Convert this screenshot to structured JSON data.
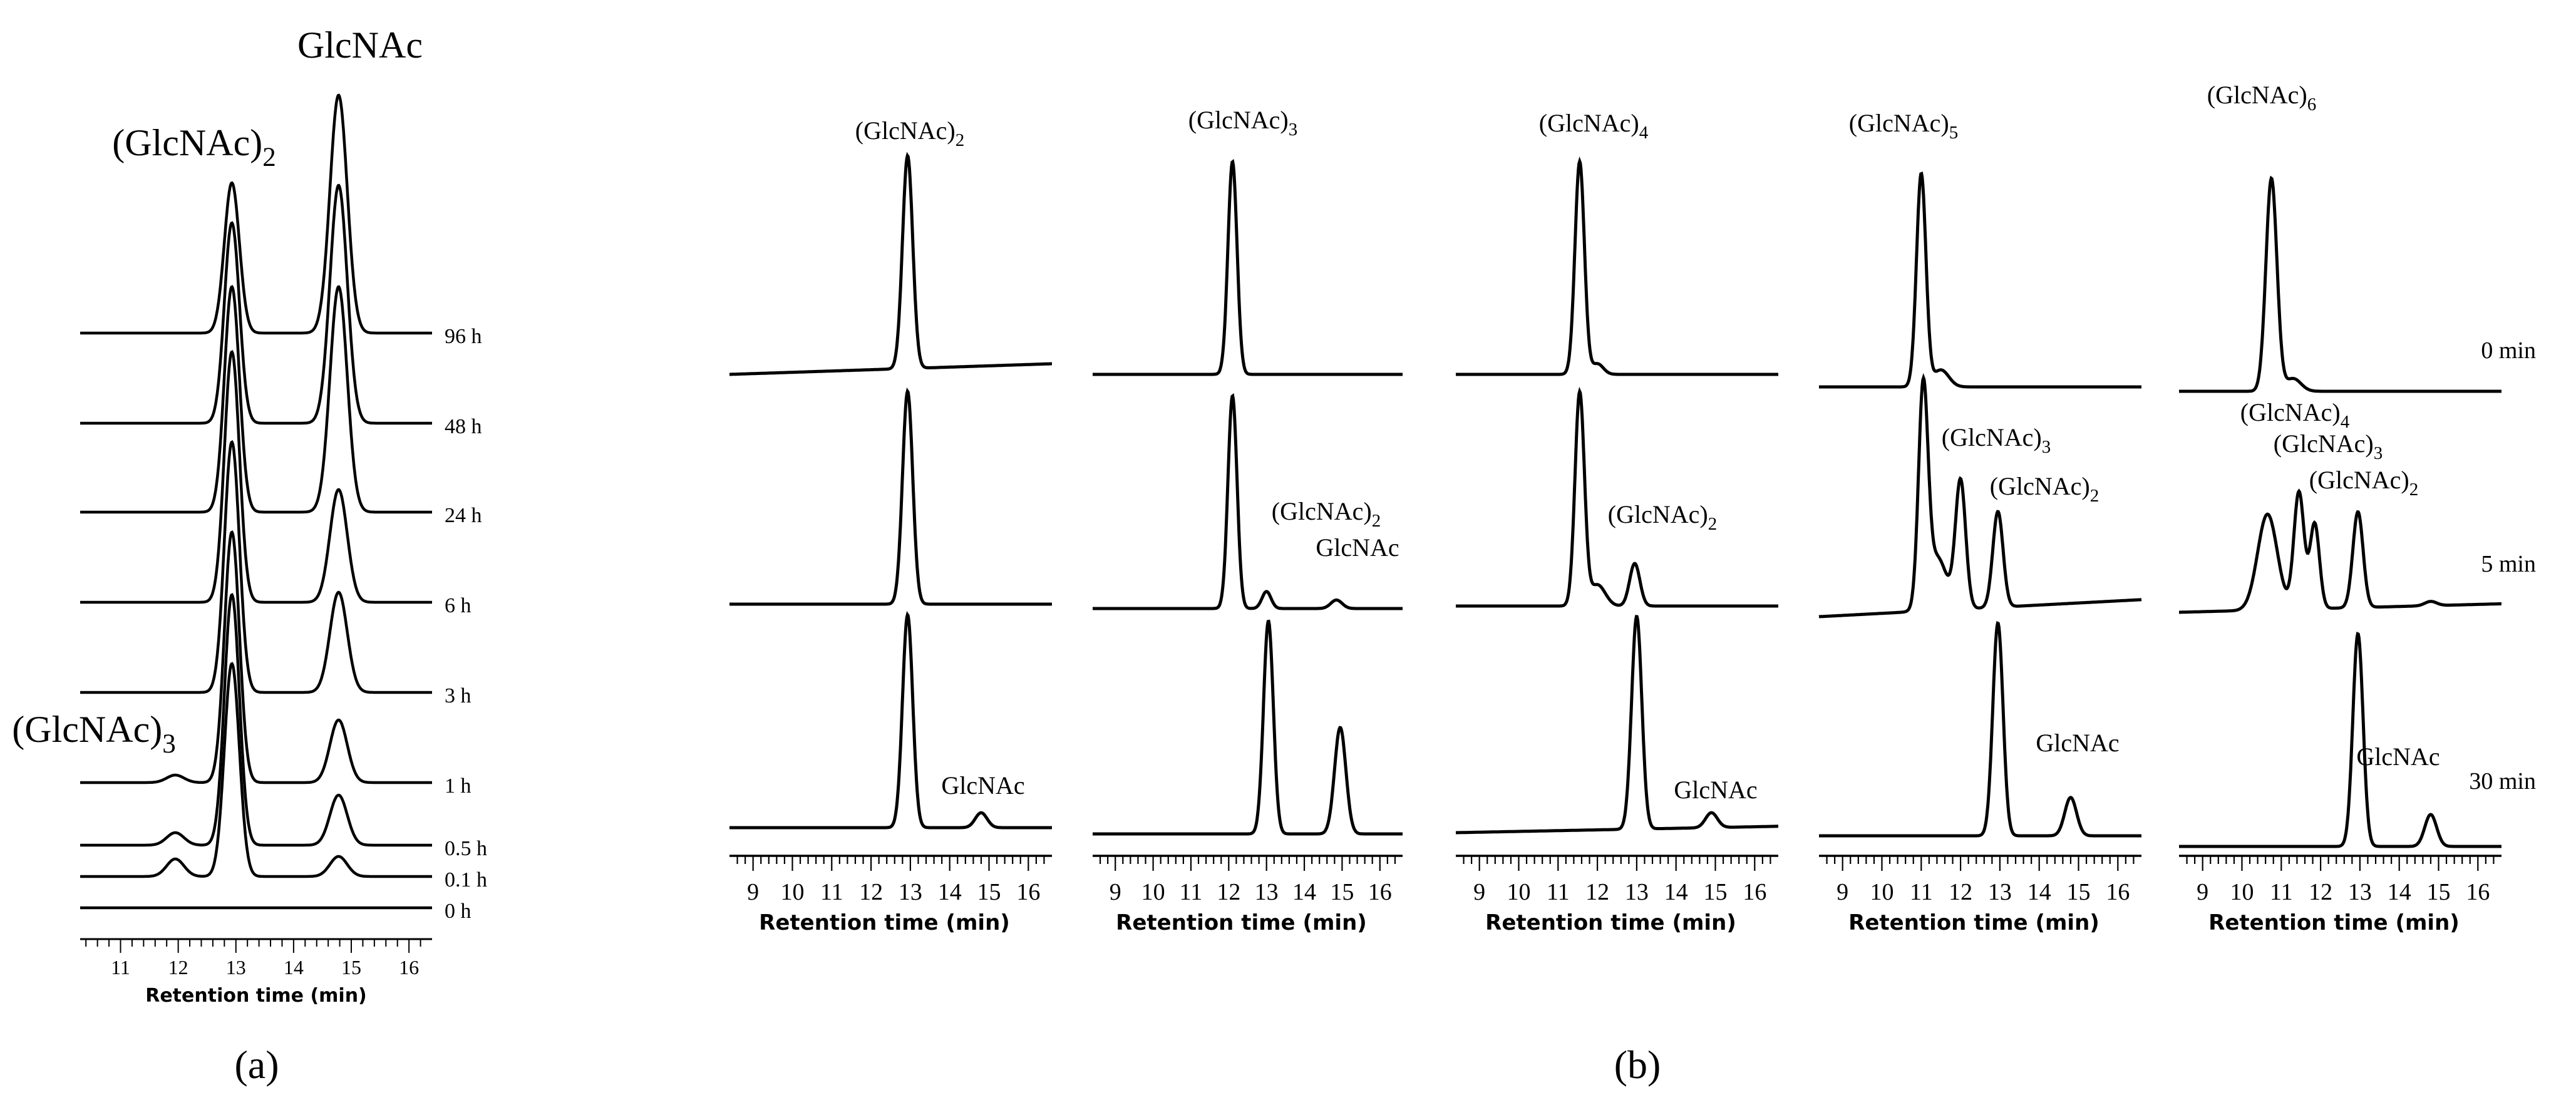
{
  "panel_labels": {
    "a": "(a)",
    "b": "(b)"
  },
  "chart_data": [
    {
      "id": "a",
      "type": "line",
      "title": "",
      "xlabel": "Retention time (min)",
      "ylabel": "",
      "xlim": [
        10.3,
        16.4
      ],
      "x_ticks": [
        "11",
        "12",
        "13",
        "14",
        "15",
        "16"
      ],
      "grid": false,
      "peak_labels": [
        {
          "text": "(GlcNAc)",
          "sub": "2",
          "x": 12.9
        },
        {
          "text": "GlcNAc",
          "sub": "",
          "x": 14.8
        },
        {
          "text": "(GlcNAc)",
          "sub": "3",
          "x": 11.9
        }
      ],
      "series": [
        {
          "name": "96 h",
          "peaks": [
            [
              12.93,
              0.6,
              0.13
            ],
            [
              14.78,
              0.95,
              0.15
            ]
          ]
        },
        {
          "name": "48 h",
          "peaks": [
            [
              12.93,
              0.8,
              0.13
            ],
            [
              14.78,
              0.95,
              0.15
            ]
          ]
        },
        {
          "name": "24 h",
          "peaks": [
            [
              12.93,
              0.9,
              0.13
            ],
            [
              14.78,
              0.9,
              0.15
            ]
          ]
        },
        {
          "name": "6 h",
          "peaks": [
            [
              12.93,
              1.0,
              0.13
            ],
            [
              14.78,
              0.45,
              0.15
            ]
          ]
        },
        {
          "name": "3 h",
          "peaks": [
            [
              12.93,
              1.0,
              0.13
            ],
            [
              14.78,
              0.4,
              0.15
            ]
          ]
        },
        {
          "name": "1 h",
          "peaks": [
            [
              11.95,
              0.03,
              0.15
            ],
            [
              12.93,
              1.0,
              0.13
            ],
            [
              14.78,
              0.25,
              0.15
            ]
          ]
        },
        {
          "name": "0.5 h",
          "peaks": [
            [
              11.95,
              0.05,
              0.15
            ],
            [
              12.93,
              1.0,
              0.13
            ],
            [
              14.78,
              0.2,
              0.15
            ]
          ]
        },
        {
          "name": "0.1 h",
          "peaks": [
            [
              11.95,
              0.07,
              0.15
            ],
            [
              12.93,
              0.85,
              0.13
            ],
            [
              14.78,
              0.08,
              0.15
            ]
          ]
        },
        {
          "name": "0 h",
          "peaks": []
        }
      ]
    },
    {
      "id": "b1",
      "type": "line",
      "xlabel": "Retention time (min)",
      "xlim": [
        8.4,
        16.6
      ],
      "x_ticks": [
        "9",
        "10",
        "11",
        "12",
        "13",
        "14",
        "15",
        "16"
      ],
      "series": [
        {
          "name": "0 min",
          "peaks": [
            [
              12.93,
              1.0,
              0.13
            ]
          ],
          "baseline_rise": 0.05,
          "labels": [
            {
              "text": "(GlcNAc)",
              "sub": "2",
              "x": 12.93
            }
          ]
        },
        {
          "name": "5 min",
          "peaks": [
            [
              12.93,
              1.0,
              0.13
            ]
          ],
          "labels": []
        },
        {
          "name": "30 min",
          "peaks": [
            [
              12.93,
              1.0,
              0.13
            ],
            [
              14.8,
              0.07,
              0.15
            ]
          ],
          "labels": [
            {
              "text": "GlcNAc",
              "sub": "",
              "x": 14.8
            }
          ]
        }
      ]
    },
    {
      "id": "b2",
      "type": "line",
      "xlabel": "Retention time (min)",
      "xlim": [
        8.4,
        16.6
      ],
      "x_ticks": [
        "9",
        "10",
        "11",
        "12",
        "13",
        "14",
        "15",
        "16"
      ],
      "series": [
        {
          "name": "0 min",
          "peaks": [
            [
              12.1,
              1.0,
              0.12
            ]
          ],
          "labels": [
            {
              "text": "(GlcNAc)",
              "sub": "3",
              "x": 12.1
            }
          ]
        },
        {
          "name": "5 min",
          "peaks": [
            [
              12.1,
              1.0,
              0.12
            ],
            [
              13.0,
              0.08,
              0.12
            ],
            [
              14.85,
              0.04,
              0.15
            ]
          ],
          "labels": [
            {
              "text": "(GlcNAc)",
              "sub": "2",
              "x": 13.0
            },
            {
              "text": "GlcNAc",
              "sub": "",
              "x": 14.85
            }
          ]
        },
        {
          "name": "30 min",
          "peaks": [
            [
              13.05,
              1.0,
              0.13
            ],
            [
              14.95,
              0.5,
              0.15
            ]
          ],
          "labels": []
        }
      ]
    },
    {
      "id": "b3",
      "type": "line",
      "xlabel": "Retention time (min)",
      "xlim": [
        8.4,
        16.6
      ],
      "x_ticks": [
        "9",
        "10",
        "11",
        "12",
        "13",
        "14",
        "15",
        "16"
      ],
      "series": [
        {
          "name": "0 min",
          "peaks": [
            [
              11.55,
              1.0,
              0.12
            ],
            [
              12.0,
              0.05,
              0.15
            ]
          ],
          "labels": [
            {
              "text": "(GlcNAc)",
              "sub": "4",
              "x": 11.55
            }
          ]
        },
        {
          "name": "5 min",
          "peaks": [
            [
              11.55,
              1.0,
              0.12
            ],
            [
              12.0,
              0.1,
              0.2
            ],
            [
              12.95,
              0.2,
              0.13
            ]
          ],
          "labels": [
            {
              "text": "(GlcNAc)",
              "sub": "2",
              "x": 12.95
            }
          ]
        },
        {
          "name": "30 min",
          "peaks": [
            [
              13.0,
              1.0,
              0.13
            ],
            [
              14.9,
              0.07,
              0.15
            ]
          ],
          "baseline_rise": 0.03,
          "labels": [
            {
              "text": "GlcNAc",
              "sub": "",
              "x": 14.9
            }
          ]
        }
      ]
    },
    {
      "id": "b4",
      "type": "line",
      "xlabel": "Retention time (min)",
      "xlim": [
        8.4,
        16.6
      ],
      "x_ticks": [
        "9",
        "10",
        "11",
        "12",
        "13",
        "14",
        "15",
        "16"
      ],
      "series": [
        {
          "name": "0 min",
          "peaks": [
            [
              11.0,
              1.0,
              0.12
            ],
            [
              11.5,
              0.08,
              0.2
            ]
          ],
          "labels": [
            {
              "text": "(GlcNAc)",
              "sub": "5",
              "x": 11.0
            }
          ]
        },
        {
          "name": "5 min",
          "peaks": [
            [
              11.05,
              1.0,
              0.12
            ],
            [
              11.4,
              0.25,
              0.25
            ],
            [
              12.0,
              0.6,
              0.13
            ],
            [
              12.95,
              0.45,
              0.13
            ]
          ],
          "baseline_rise": 0.08,
          "labels": [
            {
              "text": "(GlcNAc)",
              "sub": "3",
              "x": 12.0
            },
            {
              "text": "(GlcNAc)",
              "sub": "2",
              "x": 12.95
            }
          ]
        },
        {
          "name": "30 min",
          "peaks": [
            [
              12.95,
              1.0,
              0.13
            ],
            [
              14.8,
              0.18,
              0.15
            ]
          ],
          "labels": [
            {
              "text": "GlcNAc",
              "sub": "",
              "x": 14.8
            }
          ]
        }
      ]
    },
    {
      "id": "b5",
      "type": "line",
      "xlabel": "Retention time (min)",
      "xlim": [
        8.4,
        16.6
      ],
      "x_ticks": [
        "9",
        "10",
        "11",
        "12",
        "13",
        "14",
        "15",
        "16"
      ],
      "series": [
        {
          "name": "0 min",
          "peaks": [
            [
              10.75,
              1.0,
              0.14
            ],
            [
              11.3,
              0.06,
              0.2
            ]
          ],
          "labels": [
            {
              "text": "(GlcNAc)",
              "sub": "6",
              "x": 10.75
            }
          ]
        },
        {
          "name": "5 min",
          "peaks": [
            [
              10.65,
              0.45,
              0.25
            ],
            [
              11.45,
              0.55,
              0.13
            ],
            [
              11.85,
              0.4,
              0.12
            ],
            [
              12.95,
              0.45,
              0.13
            ],
            [
              14.8,
              0.02,
              0.15
            ]
          ],
          "baseline_rise": 0.04,
          "labels": [
            {
              "text": "(GlcNAc)",
              "sub": "4",
              "x": 11.45
            },
            {
              "text": "(GlcNAc)",
              "sub": "3",
              "x": 11.85
            },
            {
              "text": "(GlcNAc)",
              "sub": "2",
              "x": 12.95
            }
          ]
        },
        {
          "name": "30 min",
          "peaks": [
            [
              12.95,
              1.0,
              0.13
            ],
            [
              14.8,
              0.15,
              0.15
            ]
          ],
          "labels": [
            {
              "text": "GlcNAc",
              "sub": "",
              "x": 14.8
            }
          ]
        }
      ]
    }
  ]
}
